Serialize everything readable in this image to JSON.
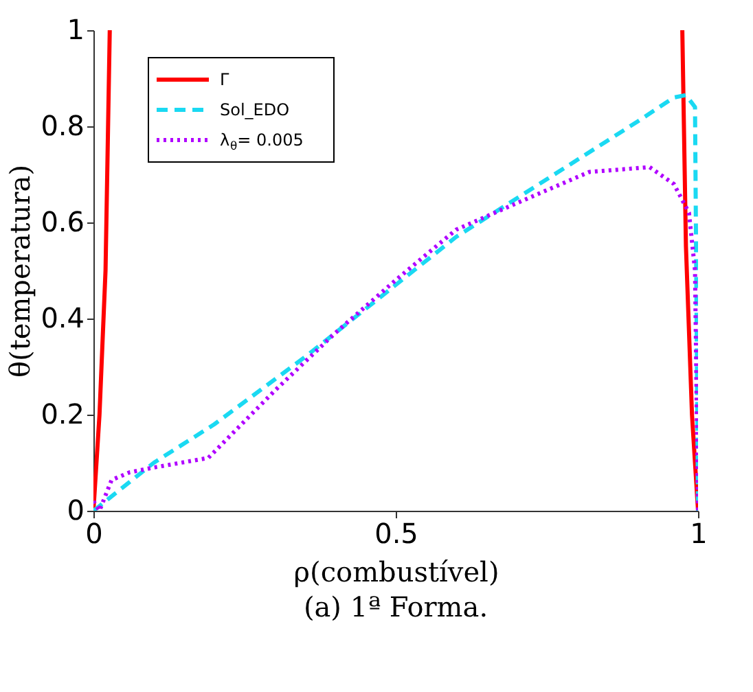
{
  "chart_data": {
    "type": "line",
    "xlabel": "ρ(combustível)",
    "ylabel": "θ(temperatura)",
    "annotations": [
      "(a) 1ª Forma."
    ],
    "xlim": [
      0,
      1
    ],
    "ylim": [
      0,
      1
    ],
    "xticks": [
      0,
      0.5,
      1
    ],
    "yticks": [
      0,
      0.2,
      0.4,
      0.6,
      0.8,
      1
    ],
    "grid": false,
    "legend": "top left",
    "marker": "none",
    "series": [
      {
        "name": "Γ",
        "color": "#ff0000",
        "line_style": "solid",
        "x": [
          0,
          0.01,
          0.02,
          0.027,
          0.5,
          0.974,
          0.98,
          0.99,
          1
        ],
        "values": [
          0,
          0.2,
          0.5,
          1,
          null,
          1,
          0.55,
          0.2,
          0
        ]
      },
      {
        "name": "Sol_EDO",
        "color": "#1ad9f2",
        "line_style": "dashed",
        "x": [
          0,
          0.02,
          0.04,
          0.1,
          0.2,
          0.35,
          0.5,
          0.6,
          0.7,
          0.8,
          0.9,
          0.96,
          0.98,
          0.995,
          1
        ],
        "values": [
          0,
          0.02,
          0.04,
          0.1,
          0.18,
          0.32,
          0.47,
          0.57,
          0.65,
          0.73,
          0.81,
          0.86,
          0.865,
          0.84,
          0
        ]
      },
      {
        "name": "λ$_{θ}$= 0.005",
        "color": "#b000ff",
        "line_style": "dotted",
        "x": [
          0,
          0.01,
          0.03,
          0.06,
          0.1,
          0.19,
          0.3,
          0.4,
          0.5,
          0.6,
          0.7,
          0.82,
          0.92,
          0.96,
          0.985,
          0.995,
          1
        ],
        "values": [
          0.02,
          0,
          0.064,
          0.08,
          0.09,
          0.11,
          0.25,
          0.37,
          0.48,
          0.585,
          0.64,
          0.705,
          0.715,
          0.68,
          0.62,
          0.5,
          0
        ]
      }
    ]
  }
}
